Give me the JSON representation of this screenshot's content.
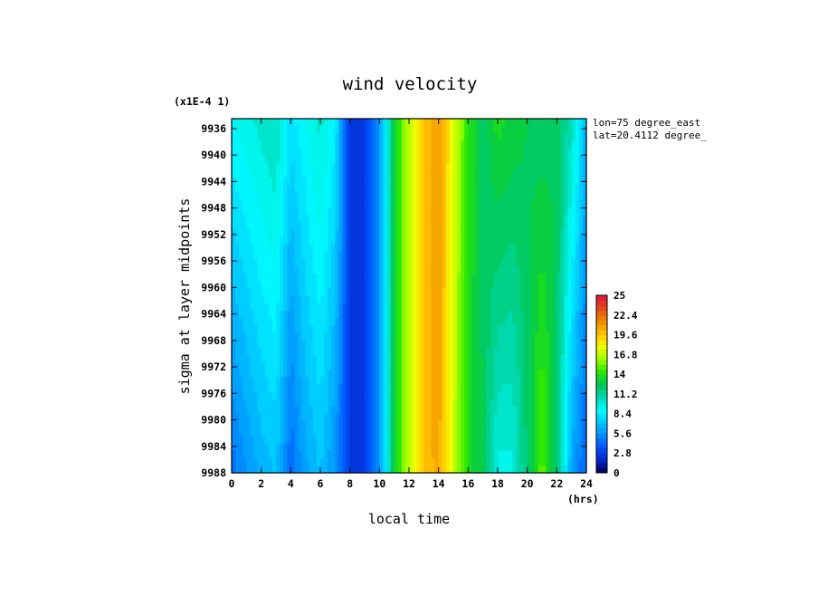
{
  "chart_data": {
    "type": "heatmap",
    "title": "wind velocity",
    "xlabel": "local time",
    "x_unit": "(hrs)",
    "ylabel": "sigma at layer midpoints",
    "y_scale_note": "(x1E-4 1)",
    "annotations": [
      "lon=75 degree_east",
      "lat=20.4112 degree_"
    ],
    "x_ticks": [
      0,
      2,
      4,
      6,
      8,
      10,
      12,
      14,
      16,
      18,
      20,
      22,
      24
    ],
    "y_ticks": [
      9936,
      9940,
      9944,
      9948,
      9952,
      9956,
      9960,
      9964,
      9968,
      9972,
      9976,
      9980,
      9984,
      9988
    ],
    "xlim": [
      0,
      24
    ],
    "ylim": [
      9988,
      9934.5
    ],
    "y_inverted": true,
    "colorbar": {
      "min": 0,
      "max": 25,
      "levels": 36,
      "ticks": [
        "25",
        "22.4",
        "19.6",
        "16.8",
        "14",
        "11.2",
        "8.4",
        "5.6",
        "2.8",
        "0"
      ],
      "palette": [
        "#e2123e",
        "#e44a1c",
        "#ee8800",
        "#ffc000",
        "#f4ff00",
        "#a0ff00",
        "#2ee800",
        "#00c850",
        "#00d8b0",
        "#00ffff",
        "#00c8ff",
        "#0090ff",
        "#0050ff",
        "#0028c8",
        "#000050"
      ]
    },
    "hours": [
      0,
      1,
      2,
      3,
      4,
      5,
      6,
      7,
      8,
      9,
      10,
      11,
      12,
      13,
      14,
      15,
      16,
      17,
      18,
      19,
      20,
      21,
      22,
      23,
      24
    ],
    "surface_values": [
      4.5,
      5.5,
      6.5,
      7.0,
      4.2,
      6.0,
      7.0,
      5.5,
      2.5,
      2.5,
      5.5,
      13.0,
      17.0,
      19.5,
      20.5,
      17.0,
      13.5,
      12.5,
      9.5,
      9.5,
      12.0,
      15.0,
      12.0,
      6.0,
      4.0
    ],
    "top_values": [
      9.0,
      9.5,
      10.0,
      10.5,
      8.0,
      9.0,
      10.0,
      8.5,
      2.5,
      2.5,
      5.5,
      13.0,
      17.0,
      19.5,
      21.0,
      17.5,
      14.0,
      12.0,
      13.5,
      13.0,
      12.5,
      12.0,
      12.5,
      10.5,
      6.5
    ]
  }
}
